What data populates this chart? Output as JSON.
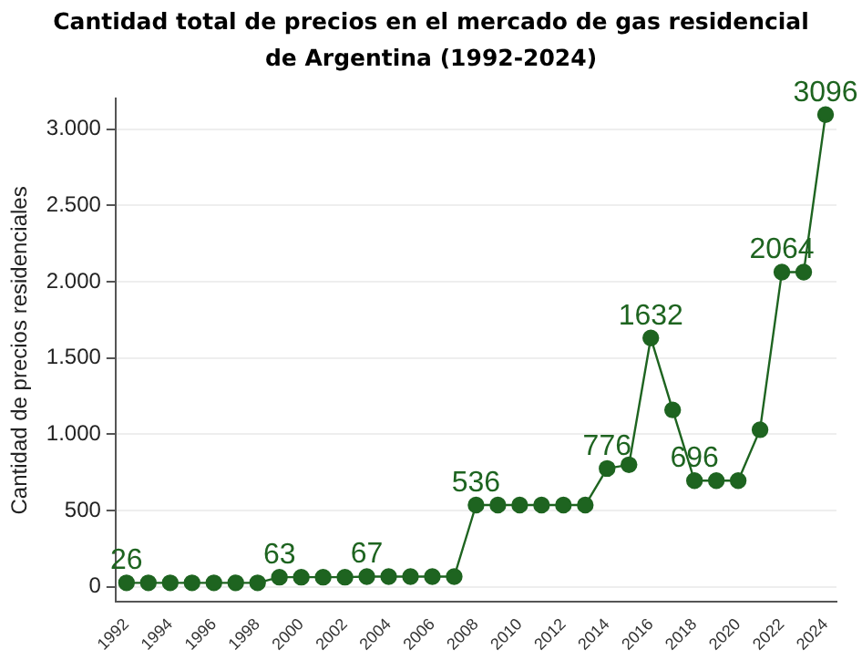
{
  "chart_data": {
    "type": "line",
    "title": "Cantidad total de precios en el mercado de gas residencial de Argentina (1992-2024)",
    "ylabel": "Cantidad de precios residenciales",
    "categories": [
      "1992",
      null,
      "1994",
      null,
      "1996",
      null,
      "1998",
      null,
      "2000",
      null,
      "2002",
      null,
      "2004",
      null,
      "2006",
      null,
      "2008",
      null,
      "2010",
      null,
      "2012",
      null,
      "2014",
      null,
      "2016",
      null,
      "2018",
      null,
      "2020",
      null,
      "2022",
      null,
      "2024"
    ],
    "series": [
      {
        "color": "#1e6420",
        "values": [
          26,
          26,
          26,
          26,
          26,
          26,
          26,
          63,
          63,
          63,
          63,
          67,
          67,
          67,
          67,
          67,
          536,
          536,
          536,
          536,
          536,
          536,
          776,
          800,
          1632,
          1160,
          696,
          696,
          696,
          1030,
          2064,
          2064,
          3096
        ],
        "value_labels": [
          "26",
          null,
          null,
          null,
          null,
          null,
          null,
          "63",
          null,
          null,
          null,
          "67",
          null,
          null,
          null,
          null,
          "536",
          null,
          null,
          null,
          null,
          null,
          "776",
          null,
          "1632",
          null,
          "696",
          null,
          null,
          null,
          "2064",
          null,
          "3096"
        ]
      }
    ],
    "ylim": [
      -100,
      3200
    ],
    "yticks": [
      {
        "value": 0,
        "label": "0"
      },
      {
        "value": 500,
        "label": "500"
      },
      {
        "value": 1000,
        "label": "1.000"
      },
      {
        "value": 1500,
        "label": "1.500"
      },
      {
        "value": 2000,
        "label": "2.000"
      },
      {
        "value": 2500,
        "label": "2.500"
      },
      {
        "value": 3000,
        "label": "3.000"
      }
    ],
    "grid": "y",
    "marker": "circle",
    "line_style": "solid",
    "legend": false
  }
}
